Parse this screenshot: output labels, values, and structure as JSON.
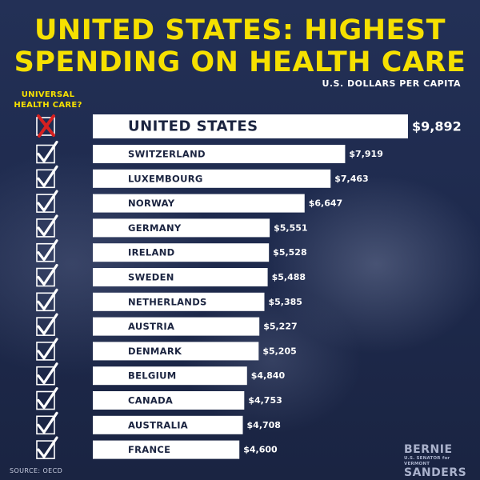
{
  "header": {
    "title_line1": "UNITED STATES: HIGHEST",
    "title_line2": "SPENDING ON HEALTH CARE",
    "subtitle": "U.S. DOLLARS PER CAPITA",
    "column_header": "UNIVERSAL HEALTH CARE?"
  },
  "footer": {
    "source": "SOURCE: OECD",
    "logo_top": "BERNIE",
    "logo_middle": "U.S. SENATOR for VERMONT",
    "logo_bottom": "SANDERS"
  },
  "colors": {
    "title": "#f6e000",
    "bar": "#ffffff",
    "check": "#ffffff",
    "cross": "#d62020",
    "background": "#1e2a4d"
  },
  "chart_data": {
    "type": "bar",
    "orientation": "horizontal",
    "title": "UNITED STATES: HIGHEST SPENDING ON HEALTH CARE",
    "subtitle": "U.S. DOLLARS PER CAPITA",
    "categories": [
      "UNITED STATES",
      "SWITZERLAND",
      "LUXEMBOURG",
      "NORWAY",
      "GERMANY",
      "IRELAND",
      "SWEDEN",
      "NETHERLANDS",
      "AUSTRIA",
      "DENMARK",
      "BELGIUM",
      "CANADA",
      "AUSTRALIA",
      "FRANCE"
    ],
    "values": [
      9892,
      7919,
      7463,
      6647,
      5551,
      5528,
      5488,
      5385,
      5227,
      5205,
      4840,
      4753,
      4708,
      4600
    ],
    "value_labels": [
      "$9,892",
      "$7,919",
      "$7,463",
      "$6,647",
      "$5,551",
      "$5,528",
      "$5,488",
      "$5,385",
      "$5,227",
      "$5,205",
      "$4,840",
      "$4,753",
      "$4,708",
      "$4,600"
    ],
    "universal_health_care": [
      false,
      true,
      true,
      true,
      true,
      true,
      true,
      true,
      true,
      true,
      true,
      true,
      true,
      true
    ],
    "xlim": [
      0,
      9892
    ],
    "grid": false
  }
}
